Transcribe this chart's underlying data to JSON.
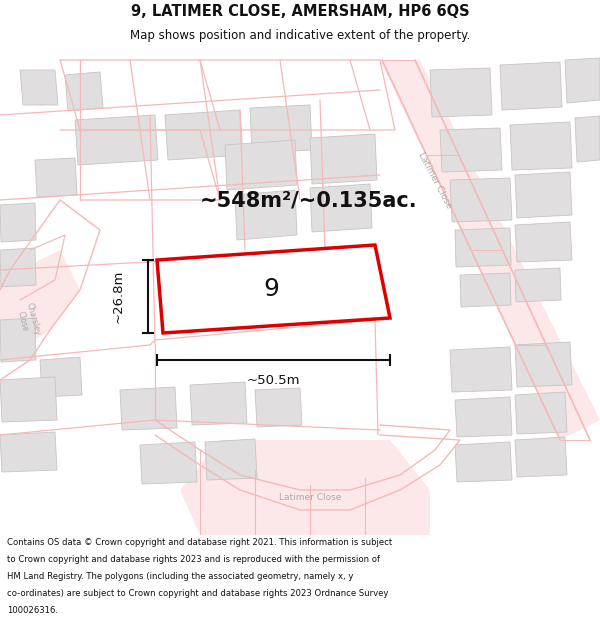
{
  "title": "9, LATIMER CLOSE, AMERSHAM, HP6 6QS",
  "subtitle": "Map shows position and indicative extent of the property.",
  "area_label": "~548m²/~0.135ac.",
  "width_label": "~50.5m",
  "height_label": "~26.8m",
  "plot_number": "9",
  "footer_lines": [
    "Contains OS data © Crown copyright and database right 2021. This information is subject",
    "to Crown copyright and database rights 2023 and is reproduced with the permission of",
    "HM Land Registry. The polygons (including the associated geometry, namely x, y",
    "co-ordinates) are subject to Crown copyright and database rights 2023 Ordnance Survey",
    "100026316."
  ],
  "map_bg": "#ffffff",
  "road_line_color": "#f5b8b8",
  "road_fill_color": "#fce8e8",
  "building_fill": "#e0dede",
  "building_edge": "#c8c4c4",
  "plot_fill": "#ffffff",
  "plot_edge_color": "#dd0000",
  "dim_color": "#111111",
  "title_color": "#111111",
  "footer_color": "#111111",
  "latimer_close_text_color": "#aaaaaa",
  "charsley_close_text_color": "#aaaaaa"
}
